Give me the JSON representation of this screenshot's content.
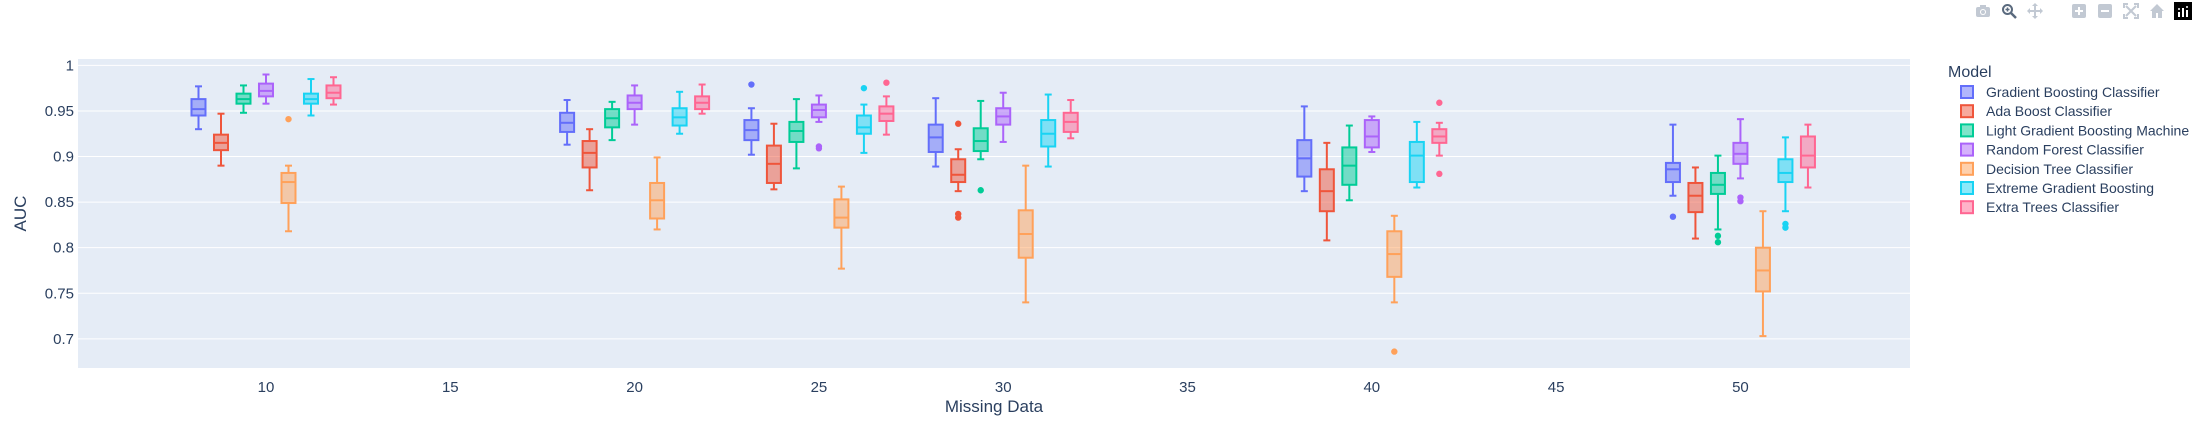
{
  "modebar": {
    "buttons": [
      {
        "icon": "camera-icon",
        "label": "Download plot as a png"
      },
      {
        "icon": "zoom-icon",
        "label": "Zoom"
      },
      {
        "icon": "pan-icon",
        "label": "Pan"
      },
      {
        "icon": "zoom-in-icon",
        "label": "Zoom in"
      },
      {
        "icon": "zoom-out-icon",
        "label": "Zoom out"
      },
      {
        "icon": "autoscale-icon",
        "label": "Autoscale"
      },
      {
        "icon": "reset-axes-icon",
        "label": "Reset axes"
      },
      {
        "icon": "plotly-logo-icon",
        "label": "Produced with Plotly"
      }
    ]
  },
  "chart_data": {
    "type": "box",
    "xlabel": "Missing Data",
    "ylabel": "AUC",
    "legend_title": "Model",
    "legend_position": "right",
    "xlim": [
      4.9,
      54.6
    ],
    "ylim": [
      0.668,
      1.007
    ],
    "x_ticks": [
      10,
      15,
      20,
      25,
      30,
      35,
      40,
      45,
      50
    ],
    "y_ticks": [
      0.7,
      0.75,
      0.8,
      0.85,
      0.9,
      0.95,
      1
    ],
    "y_tick_labels": [
      "0.7",
      "0.75",
      "0.8",
      "0.85",
      "0.9",
      "0.95",
      "1"
    ],
    "grid": true,
    "plot_bg": "#E5ECF6",
    "categories": [
      10,
      20,
      25,
      30,
      40,
      50
    ],
    "series": [
      {
        "name": "Gradient Boosting Classifier",
        "color": "#636EFA",
        "boxes": [
          {
            "x": 10,
            "min": 0.93,
            "q1": 0.945,
            "median": 0.952,
            "q3": 0.963,
            "max": 0.977,
            "outliers": []
          },
          {
            "x": 20,
            "min": 0.913,
            "q1": 0.927,
            "median": 0.937,
            "q3": 0.948,
            "max": 0.962,
            "outliers": []
          },
          {
            "x": 25,
            "min": 0.902,
            "q1": 0.918,
            "median": 0.929,
            "q3": 0.94,
            "max": 0.953,
            "outliers": [
              0.979
            ]
          },
          {
            "x": 30,
            "min": 0.889,
            "q1": 0.905,
            "median": 0.921,
            "q3": 0.935,
            "max": 0.964,
            "outliers": []
          },
          {
            "x": 40,
            "min": 0.862,
            "q1": 0.878,
            "median": 0.898,
            "q3": 0.918,
            "max": 0.955,
            "outliers": []
          },
          {
            "x": 50,
            "min": 0.857,
            "q1": 0.872,
            "median": 0.886,
            "q3": 0.893,
            "max": 0.935,
            "outliers": [
              0.834
            ]
          }
        ]
      },
      {
        "name": "Ada Boost Classifier",
        "color": "#EF553B",
        "boxes": [
          {
            "x": 10,
            "min": 0.89,
            "q1": 0.907,
            "median": 0.915,
            "q3": 0.924,
            "max": 0.947,
            "outliers": []
          },
          {
            "x": 20,
            "min": 0.863,
            "q1": 0.888,
            "median": 0.904,
            "q3": 0.917,
            "max": 0.93,
            "outliers": []
          },
          {
            "x": 25,
            "min": 0.864,
            "q1": 0.871,
            "median": 0.892,
            "q3": 0.912,
            "max": 0.936,
            "outliers": []
          },
          {
            "x": 30,
            "min": 0.862,
            "q1": 0.872,
            "median": 0.88,
            "q3": 0.897,
            "max": 0.908,
            "outliers": [
              0.936,
              0.837,
              0.833
            ]
          },
          {
            "x": 40,
            "min": 0.808,
            "q1": 0.84,
            "median": 0.862,
            "q3": 0.886,
            "max": 0.915,
            "outliers": []
          },
          {
            "x": 50,
            "min": 0.81,
            "q1": 0.839,
            "median": 0.857,
            "q3": 0.871,
            "max": 0.888,
            "outliers": []
          }
        ]
      },
      {
        "name": "Light Gradient Boosting Machine",
        "color": "#00CC96",
        "boxes": [
          {
            "x": 10,
            "min": 0.948,
            "q1": 0.958,
            "median": 0.963,
            "q3": 0.969,
            "max": 0.978,
            "outliers": []
          },
          {
            "x": 20,
            "min": 0.918,
            "q1": 0.932,
            "median": 0.942,
            "q3": 0.952,
            "max": 0.96,
            "outliers": []
          },
          {
            "x": 25,
            "min": 0.887,
            "q1": 0.916,
            "median": 0.928,
            "q3": 0.938,
            "max": 0.963,
            "outliers": []
          },
          {
            "x": 30,
            "min": 0.897,
            "q1": 0.906,
            "median": 0.917,
            "q3": 0.931,
            "max": 0.961,
            "outliers": [
              0.863
            ]
          },
          {
            "x": 40,
            "min": 0.852,
            "q1": 0.869,
            "median": 0.89,
            "q3": 0.91,
            "max": 0.934,
            "outliers": []
          },
          {
            "x": 50,
            "min": 0.82,
            "q1": 0.859,
            "median": 0.869,
            "q3": 0.882,
            "max": 0.901,
            "outliers": [
              0.813,
              0.806
            ]
          }
        ]
      },
      {
        "name": "Random Forest Classifier",
        "color": "#AB63FA",
        "boxes": [
          {
            "x": 10,
            "min": 0.958,
            "q1": 0.966,
            "median": 0.972,
            "q3": 0.98,
            "max": 0.99,
            "outliers": []
          },
          {
            "x": 20,
            "min": 0.935,
            "q1": 0.952,
            "median": 0.959,
            "q3": 0.967,
            "max": 0.978,
            "outliers": []
          },
          {
            "x": 25,
            "min": 0.938,
            "q1": 0.943,
            "median": 0.951,
            "q3": 0.957,
            "max": 0.967,
            "outliers": [
              0.911,
              0.909
            ]
          },
          {
            "x": 30,
            "min": 0.916,
            "q1": 0.935,
            "median": 0.944,
            "q3": 0.953,
            "max": 0.97,
            "outliers": []
          },
          {
            "x": 40,
            "min": 0.905,
            "q1": 0.91,
            "median": 0.922,
            "q3": 0.94,
            "max": 0.944,
            "outliers": []
          },
          {
            "x": 50,
            "min": 0.876,
            "q1": 0.892,
            "median": 0.903,
            "q3": 0.915,
            "max": 0.941,
            "outliers": [
              0.855,
              0.851
            ]
          }
        ]
      },
      {
        "name": "Decision Tree Classifier",
        "color": "#FFA15A",
        "boxes": [
          {
            "x": 10,
            "min": 0.818,
            "q1": 0.849,
            "median": 0.872,
            "q3": 0.882,
            "max": 0.89,
            "outliers": [
              0.941
            ]
          },
          {
            "x": 20,
            "min": 0.82,
            "q1": 0.832,
            "median": 0.852,
            "q3": 0.871,
            "max": 0.899,
            "outliers": []
          },
          {
            "x": 25,
            "min": 0.777,
            "q1": 0.822,
            "median": 0.833,
            "q3": 0.853,
            "max": 0.867,
            "outliers": []
          },
          {
            "x": 30,
            "min": 0.74,
            "q1": 0.789,
            "median": 0.815,
            "q3": 0.841,
            "max": 0.89,
            "outliers": []
          },
          {
            "x": 40,
            "min": 0.74,
            "q1": 0.768,
            "median": 0.793,
            "q3": 0.818,
            "max": 0.835,
            "outliers": [
              0.686
            ]
          },
          {
            "x": 50,
            "min": 0.703,
            "q1": 0.752,
            "median": 0.775,
            "q3": 0.8,
            "max": 0.84,
            "outliers": []
          }
        ]
      },
      {
        "name": "Extreme Gradient Boosting",
        "color": "#19D3F3",
        "boxes": [
          {
            "x": 10,
            "min": 0.945,
            "q1": 0.958,
            "median": 0.963,
            "q3": 0.969,
            "max": 0.985,
            "outliers": []
          },
          {
            "x": 20,
            "min": 0.925,
            "q1": 0.934,
            "median": 0.943,
            "q3": 0.953,
            "max": 0.971,
            "outliers": []
          },
          {
            "x": 25,
            "min": 0.904,
            "q1": 0.925,
            "median": 0.932,
            "q3": 0.945,
            "max": 0.957,
            "outliers": [
              0.975
            ]
          },
          {
            "x": 30,
            "min": 0.889,
            "q1": 0.911,
            "median": 0.925,
            "q3": 0.94,
            "max": 0.968,
            "outliers": []
          },
          {
            "x": 40,
            "min": 0.866,
            "q1": 0.872,
            "median": 0.901,
            "q3": 0.916,
            "max": 0.938,
            "outliers": []
          },
          {
            "x": 50,
            "min": 0.84,
            "q1": 0.872,
            "median": 0.882,
            "q3": 0.897,
            "max": 0.921,
            "outliers": [
              0.826,
              0.822
            ]
          }
        ]
      },
      {
        "name": "Extra Trees Classifier",
        "color": "#FF6692",
        "boxes": [
          {
            "x": 10,
            "min": 0.957,
            "q1": 0.964,
            "median": 0.97,
            "q3": 0.978,
            "max": 0.987,
            "outliers": []
          },
          {
            "x": 20,
            "min": 0.947,
            "q1": 0.952,
            "median": 0.959,
            "q3": 0.966,
            "max": 0.979,
            "outliers": []
          },
          {
            "x": 25,
            "min": 0.924,
            "q1": 0.939,
            "median": 0.947,
            "q3": 0.955,
            "max": 0.966,
            "outliers": [
              0.981
            ]
          },
          {
            "x": 30,
            "min": 0.92,
            "q1": 0.927,
            "median": 0.938,
            "q3": 0.948,
            "max": 0.962,
            "outliers": []
          },
          {
            "x": 40,
            "min": 0.901,
            "q1": 0.915,
            "median": 0.922,
            "q3": 0.93,
            "max": 0.937,
            "outliers": [
              0.959,
              0.881
            ]
          },
          {
            "x": 50,
            "min": 0.866,
            "q1": 0.888,
            "median": 0.901,
            "q3": 0.922,
            "max": 0.935,
            "outliers": []
          }
        ]
      }
    ]
  }
}
